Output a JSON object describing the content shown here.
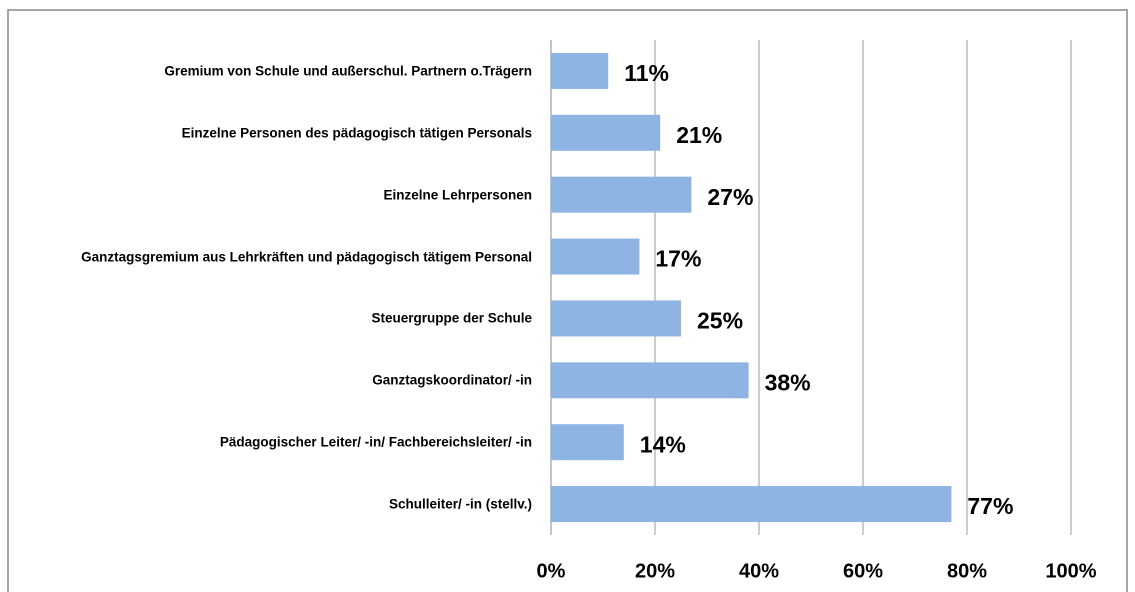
{
  "chart_data": {
    "type": "bar",
    "orientation": "horizontal",
    "categories": [
      "Gremium von Schule und außerschul. Partnern o.Trägern",
      "Einzelne Personen des pädagogisch tätigen Personals",
      "Einzelne Lehrpersonen",
      "Ganztagsgremium aus Lehrkräften und pädagogisch tätigem Personal",
      "Steuergruppe der Schule",
      "Ganztagskoordinator/ -in",
      "Pädagogischer Leiter/ -in/ Fachbereichsleiter/ -in",
      "Schulleiter/ -in (stellv.)"
    ],
    "values": [
      11,
      21,
      27,
      17,
      25,
      38,
      14,
      77
    ],
    "value_labels": [
      "11%",
      "21%",
      "27%",
      "17%",
      "25%",
      "38%",
      "14%",
      "77%"
    ],
    "color": "#8eb4e3",
    "xlim": [
      0,
      100
    ],
    "xticks": [
      {
        "value": 0,
        "label": "0%"
      },
      {
        "value": 20,
        "label": "20%"
      },
      {
        "value": 40,
        "label": "40%"
      },
      {
        "value": 60,
        "label": "60%"
      },
      {
        "value": 80,
        "label": "80%"
      },
      {
        "value": 100,
        "label": "100%"
      }
    ],
    "grid": true
  }
}
